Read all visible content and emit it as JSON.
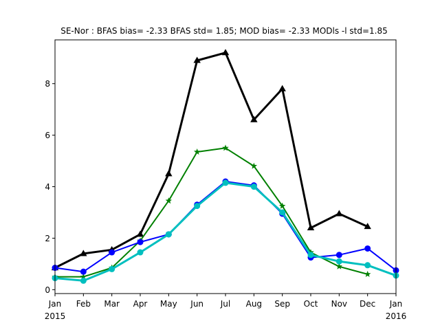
{
  "chart_data": {
    "type": "line",
    "title": "SE-Nor   : BFAS bias= -2.33 BFAS std= 1.85; MOD bias= -2.33 MODls -l std=1.85",
    "xlabel": "",
    "ylabel": "",
    "x_ticks": [
      {
        "label": "Jan",
        "sublabel": "2015",
        "month": 0
      },
      {
        "label": "Feb",
        "sublabel": "",
        "month": 1
      },
      {
        "label": "Mar",
        "sublabel": "",
        "month": 2
      },
      {
        "label": "Apr",
        "sublabel": "",
        "month": 3
      },
      {
        "label": "May",
        "sublabel": "",
        "month": 4
      },
      {
        "label": "Jun",
        "sublabel": "",
        "month": 5
      },
      {
        "label": "Jul",
        "sublabel": "",
        "month": 6
      },
      {
        "label": "Aug",
        "sublabel": "",
        "month": 7
      },
      {
        "label": "Sep",
        "sublabel": "",
        "month": 8
      },
      {
        "label": "Oct",
        "sublabel": "",
        "month": 9
      },
      {
        "label": "Nov",
        "sublabel": "",
        "month": 10
      },
      {
        "label": "Dec",
        "sublabel": "",
        "month": 11
      },
      {
        "label": "Jan",
        "sublabel": "2016",
        "month": 12
      }
    ],
    "y_ticks": [
      0,
      2,
      4,
      6,
      8
    ],
    "xlim": [
      0,
      12
    ],
    "ylim": [
      -0.15,
      9.7
    ],
    "grid": false,
    "series": [
      {
        "color": "#000000",
        "marker": "triangle",
        "width": 3,
        "x": [
          0,
          1,
          2,
          3,
          4,
          5,
          6,
          7,
          8,
          9,
          10,
          11
        ],
        "y": [
          0.85,
          1.4,
          1.55,
          2.15,
          4.5,
          8.9,
          9.2,
          6.6,
          7.8,
          2.4,
          2.95,
          2.45
        ]
      },
      {
        "color": "#008000",
        "marker": "star",
        "width": 2,
        "x": [
          0,
          1,
          2,
          3,
          4,
          5,
          6,
          7,
          8,
          9,
          10,
          11
        ],
        "y": [
          0.5,
          0.5,
          0.85,
          1.9,
          3.45,
          5.35,
          5.5,
          4.8,
          3.25,
          1.45,
          0.9,
          0.6
        ]
      },
      {
        "color": "#0000ff",
        "marker": "circle",
        "width": 2,
        "x": [
          0,
          1,
          2,
          3,
          4,
          5,
          6,
          7,
          8,
          9,
          10,
          11,
          12
        ],
        "y": [
          0.85,
          0.7,
          1.45,
          1.85,
          2.15,
          3.3,
          4.2,
          4.05,
          2.95,
          1.25,
          1.35,
          1.6,
          0.75
        ]
      },
      {
        "color": "#00bfbf",
        "marker": "circle",
        "width": 3,
        "x": [
          0,
          1,
          2,
          3,
          4,
          5,
          6,
          7,
          8,
          9,
          10,
          11,
          12
        ],
        "y": [
          0.45,
          0.35,
          0.8,
          1.45,
          2.15,
          3.25,
          4.15,
          4.0,
          3.0,
          1.35,
          1.1,
          0.95,
          0.55
        ]
      }
    ]
  }
}
